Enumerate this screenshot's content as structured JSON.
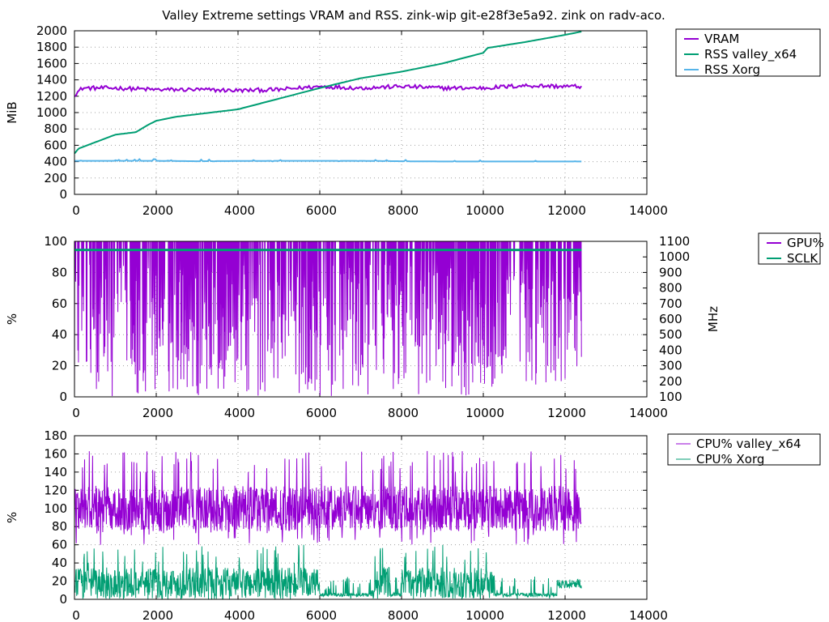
{
  "title": "Valley Extreme settings VRAM and RSS. zink-wip git-e28f3e5a92. zink on radv-aco.",
  "chart_data": [
    {
      "type": "line",
      "ylabel": "MiB",
      "xlim": [
        0,
        14000
      ],
      "ylim": [
        0,
        2000
      ],
      "x_ticks": [
        0,
        2000,
        4000,
        6000,
        8000,
        10000,
        12000,
        14000
      ],
      "y_ticks": [
        0,
        200,
        400,
        600,
        800,
        1000,
        1200,
        1400,
        1600,
        1800,
        2000
      ],
      "grid": true,
      "legend": "outside-top-right",
      "series": [
        {
          "name": "VRAM",
          "color": "#9400d3",
          "x": [
            0,
            200,
            1000,
            2000,
            3000,
            4000,
            5000,
            6000,
            7000,
            8000,
            9000,
            10000,
            11000,
            12000,
            12400
          ],
          "y": [
            1220,
            1300,
            1300,
            1280,
            1280,
            1270,
            1280,
            1320,
            1300,
            1320,
            1300,
            1300,
            1330,
            1320,
            1320
          ]
        },
        {
          "name": "RSS valley_x64",
          "color": "#009e73",
          "x": [
            0,
            100,
            1000,
            1500,
            1800,
            2000,
            2500,
            3000,
            4000,
            5000,
            6000,
            7000,
            8000,
            9000,
            10000,
            10100,
            11000,
            12000,
            12400
          ],
          "y": [
            500,
            560,
            730,
            760,
            850,
            900,
            950,
            980,
            1040,
            1170,
            1300,
            1420,
            1500,
            1600,
            1730,
            1790,
            1860,
            1950,
            1990
          ]
        },
        {
          "name": "RSS Xorg",
          "color": "#56b4e9",
          "x": [
            0,
            1000,
            2000,
            3000,
            4000,
            5000,
            6000,
            7000,
            8000,
            9000,
            10000,
            11000,
            12000,
            12400
          ],
          "y": [
            410,
            410,
            410,
            405,
            408,
            410,
            410,
            410,
            405,
            402,
            402,
            402,
            402,
            402
          ]
        }
      ]
    },
    {
      "type": "line",
      "ylabel": "%",
      "y2label": "MHz",
      "xlim": [
        0,
        14000
      ],
      "ylim": [
        0,
        100
      ],
      "y2lim": [
        100,
        1100
      ],
      "x_ticks": [
        0,
        2000,
        4000,
        6000,
        8000,
        10000,
        12000,
        14000
      ],
      "y_ticks": [
        0,
        20,
        40,
        60,
        80,
        100
      ],
      "y2_ticks": [
        100,
        200,
        300,
        400,
        500,
        600,
        700,
        800,
        900,
        1000,
        1100
      ],
      "grid": true,
      "legend": "outside-top-right",
      "series": [
        {
          "name": "GPU%",
          "color": "#9400d3",
          "x_range": [
            0,
            12400
          ],
          "typical": 100,
          "low_range": [
            0,
            85
          ]
        },
        {
          "name": "SCLK",
          "color": "#009e73",
          "axis": "y2",
          "x": [
            0,
            12400
          ],
          "y": [
            1045,
            1045
          ]
        }
      ]
    },
    {
      "type": "line",
      "ylabel": "%",
      "xlim": [
        0,
        14000
      ],
      "ylim": [
        0,
        180
      ],
      "x_ticks": [
        0,
        2000,
        4000,
        6000,
        8000,
        10000,
        12000,
        14000
      ],
      "y_ticks": [
        0,
        20,
        40,
        60,
        80,
        100,
        120,
        140,
        160,
        180
      ],
      "grid": true,
      "legend": "outside-top-right",
      "series": [
        {
          "name": "CPU% valley_x64",
          "color": "#9400d3",
          "x_range": [
            0,
            12400
          ],
          "mean": 100,
          "range": [
            55,
            165
          ]
        },
        {
          "name": "CPU% Xorg",
          "color": "#009e73",
          "x_range": [
            0,
            12400
          ],
          "mean": 15,
          "range": [
            0,
            60
          ]
        }
      ]
    }
  ]
}
